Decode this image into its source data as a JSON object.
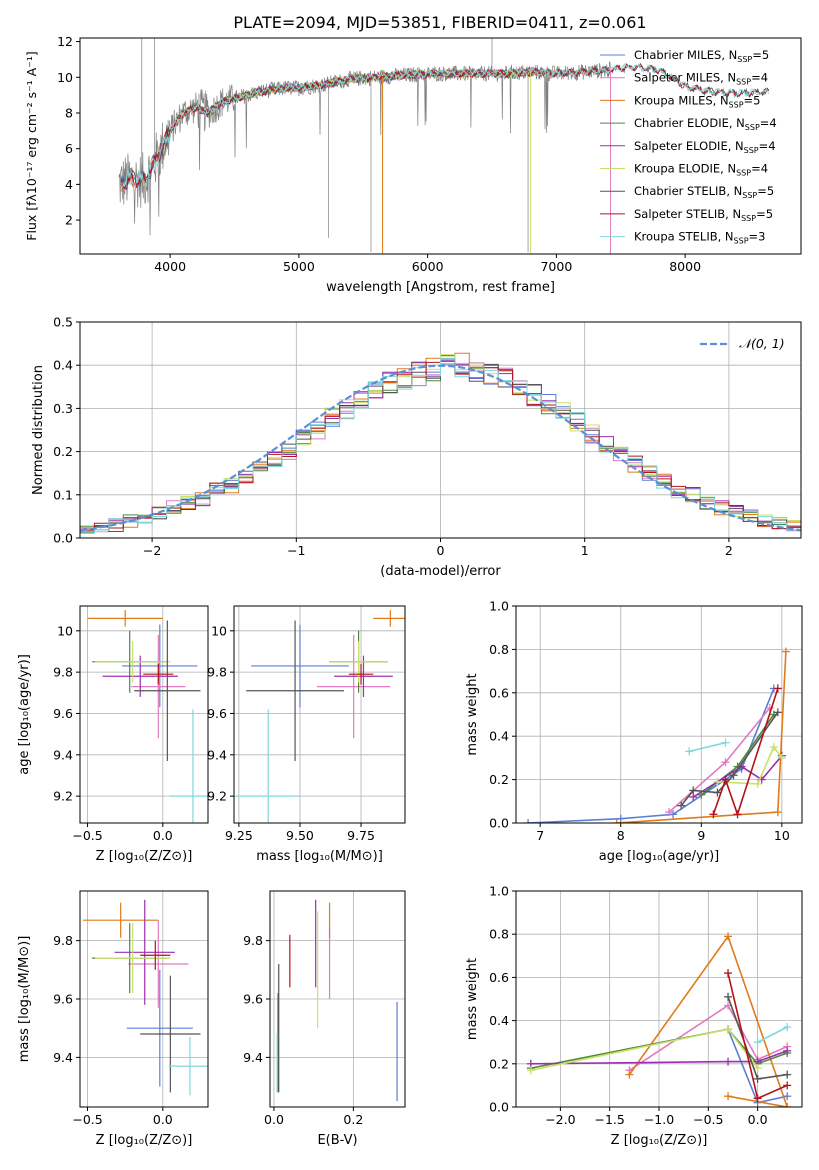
{
  "title": "PLATE=2094, MJD=53851, FIBERID=0411, z=0.061",
  "colors": {
    "chabrier_miles": "#5b7fd8",
    "salpeter_miles": "#e07bc0",
    "kroupa_miles": "#e07b1a",
    "chabrier_elodie": "#4c8a3a",
    "salpeter_elodie": "#9b2faf",
    "kroupa_elodie": "#c9e06a",
    "chabrier_stelib": "#555555",
    "salpeter_stelib": "#b5121b",
    "kroupa_stelib": "#7fd8dc",
    "data": "#7f7f7f",
    "normal": "#5b8fd8"
  },
  "chart_data": [
    {
      "id": "spectrum",
      "type": "line",
      "title": "PLATE=2094, MJD=53851, FIBERID=0411, z=0.061",
      "xlabel": "wavelength [Angstrom, rest frame]",
      "ylabel": "Flux [fλ10⁻¹⁷ erg cm⁻² s⁻¹ A⁻¹]",
      "xlim": [
        3300,
        8900
      ],
      "ylim": [
        0.1,
        12.2
      ],
      "xticks": [
        4000,
        5000,
        6000,
        7000,
        8000
      ],
      "yticks": [
        2,
        4,
        6,
        8,
        10,
        12
      ],
      "continuum": {
        "x": [
          3600,
          3700,
          3800,
          3900,
          4000,
          4100,
          4200,
          4300,
          4400,
          4500,
          4600,
          4700,
          4800,
          4900,
          5000,
          5200,
          5400,
          5600,
          5800,
          6000,
          6200,
          6400,
          6600,
          6800,
          7000,
          7200,
          7400,
          7600,
          7800,
          8000,
          8200,
          8400,
          8650
        ],
        "y": [
          4.0,
          4.3,
          4.2,
          5.5,
          7.0,
          8.0,
          8.3,
          8.0,
          8.6,
          8.8,
          9.0,
          9.2,
          9.3,
          9.4,
          9.4,
          9.6,
          9.9,
          10.0,
          10.1,
          10.2,
          10.2,
          10.2,
          10.2,
          10.3,
          10.2,
          10.3,
          10.4,
          10.6,
          10.4,
          9.5,
          9.2,
          9.1,
          9.2
        ]
      },
      "legend": [
        {
          "label": "Chabrier MILES, N",
          "nssp": "5",
          "color_key": "chabrier_miles"
        },
        {
          "label": "Salpeter MILES, N",
          "nssp": "4",
          "color_key": "salpeter_miles"
        },
        {
          "label": "Kroupa MILES, N",
          "nssp": "5",
          "color_key": "kroupa_miles"
        },
        {
          "label": "Chabrier ELODIE, N",
          "nssp": "4",
          "color_key": "chabrier_elodie"
        },
        {
          "label": "Salpeter ELODIE, N",
          "nssp": "4",
          "color_key": "salpeter_elodie"
        },
        {
          "label": "Kroupa ELODIE, N",
          "nssp": "4",
          "color_key": "kroupa_elodie"
        },
        {
          "label": "Chabrier STELIB, N",
          "nssp": "5",
          "color_key": "chabrier_stelib"
        },
        {
          "label": "Salpeter STELIB, N",
          "nssp": "5",
          "color_key": "salpeter_stelib"
        },
        {
          "label": "Kroupa STELIB, N",
          "nssp": "3",
          "color_key": "kroupa_stelib"
        }
      ],
      "nssp_sub": "SSP"
    },
    {
      "id": "residuals",
      "type": "bar",
      "xlabel": "(data-model)/error",
      "ylabel": "Normed distribution",
      "xlim": [
        -2.5,
        2.5
      ],
      "ylim": [
        0,
        0.5
      ],
      "xticks": [
        -2,
        -1,
        0,
        1,
        2
      ],
      "xtick_labels": [
        "−2",
        "−1",
        "0",
        "1",
        "2"
      ],
      "yticks": [
        0.0,
        0.1,
        0.2,
        0.3,
        0.4,
        0.5
      ],
      "ytick_labels": [
        "0.0",
        "0.1",
        "0.2",
        "0.3",
        "0.4",
        "0.5"
      ],
      "bin_start": -2.5,
      "bin_width": 0.1,
      "histogram": [
        0.02,
        0.02,
        0.03,
        0.04,
        0.05,
        0.06,
        0.07,
        0.08,
        0.09,
        0.11,
        0.12,
        0.14,
        0.16,
        0.18,
        0.2,
        0.23,
        0.25,
        0.28,
        0.3,
        0.32,
        0.34,
        0.36,
        0.37,
        0.38,
        0.39,
        0.4,
        0.4,
        0.39,
        0.38,
        0.37,
        0.35,
        0.33,
        0.31,
        0.29,
        0.27,
        0.24,
        0.22,
        0.2,
        0.17,
        0.15,
        0.13,
        0.11,
        0.1,
        0.08,
        0.07,
        0.06,
        0.05,
        0.04,
        0.035,
        0.03
      ],
      "legend_label": "𝒩(0, 1)"
    },
    {
      "id": "age_vs_Z",
      "type": "scatter",
      "xlabel": "Z [log₁₀(Z/Z⊙)]",
      "ylabel": "age  [log₁₀(age/yr)]",
      "xlim": [
        -0.55,
        0.3
      ],
      "ylim": [
        9.07,
        10.12
      ],
      "xticks": [
        -0.5,
        0.0
      ],
      "xtick_labels": [
        "−0.5",
        "0.0"
      ],
      "yticks": [
        9.2,
        9.4,
        9.6,
        9.8,
        10.0
      ],
      "points": [
        {
          "color_key": "chabrier_miles",
          "x": -0.02,
          "xerr": 0.25,
          "y": 9.83,
          "yerr": 0.2
        },
        {
          "color_key": "salpeter_miles",
          "x": -0.03,
          "xerr": 0.18,
          "y": 9.73,
          "yerr": 0.25
        },
        {
          "color_key": "kroupa_miles",
          "x": -0.25,
          "xerr": 0.25,
          "y": 10.06,
          "yerr": 0.04
        },
        {
          "color_key": "chabrier_elodie",
          "x": -0.22,
          "xerr": 0.25,
          "y": 9.85,
          "yerr": 0.15
        },
        {
          "color_key": "salpeter_elodie",
          "x": -0.15,
          "xerr": 0.25,
          "y": 9.78,
          "yerr": 0.1
        },
        {
          "color_key": "kroupa_elodie",
          "x": -0.2,
          "xerr": 0.25,
          "y": 9.85,
          "yerr": 0.1
        },
        {
          "color_key": "chabrier_stelib",
          "x": 0.03,
          "xerr": 0.22,
          "y": 9.71,
          "yerr": 0.34
        },
        {
          "color_key": "salpeter_stelib",
          "x": -0.03,
          "xerr": 0.1,
          "y": 9.79,
          "yerr": 0.05
        },
        {
          "color_key": "kroupa_stelib",
          "x": 0.2,
          "xerr": 0.15,
          "y": 9.2,
          "yerr": 0.42
        }
      ]
    },
    {
      "id": "age_vs_mass",
      "type": "scatter",
      "xlabel": "mass [log₁₀(M/M⊙)]",
      "ylabel": "",
      "xlim": [
        9.23,
        9.93
      ],
      "ylim": [
        9.07,
        10.12
      ],
      "xticks": [
        9.25,
        9.5,
        9.75
      ],
      "xtick_labels": [
        "9.25",
        "9.50",
        "9.75"
      ],
      "yticks": [
        9.2,
        9.4,
        9.6,
        9.8,
        10.0
      ],
      "points": [
        {
          "color_key": "chabrier_miles",
          "x": 9.5,
          "xerr": 0.2,
          "y": 9.83,
          "yerr": 0.2
        },
        {
          "color_key": "salpeter_miles",
          "x": 9.72,
          "xerr": 0.15,
          "y": 9.73,
          "yerr": 0.25
        },
        {
          "color_key": "kroupa_miles",
          "x": 9.87,
          "xerr": 0.07,
          "y": 10.06,
          "yerr": 0.04
        },
        {
          "color_key": "chabrier_elodie",
          "x": 9.74,
          "xerr": 0.12,
          "y": 9.85,
          "yerr": 0.15
        },
        {
          "color_key": "salpeter_elodie",
          "x": 9.76,
          "xerr": 0.12,
          "y": 9.78,
          "yerr": 0.1
        },
        {
          "color_key": "kroupa_elodie",
          "x": 9.74,
          "xerr": 0.12,
          "y": 9.85,
          "yerr": 0.1
        },
        {
          "color_key": "chabrier_stelib",
          "x": 9.48,
          "xerr": 0.2,
          "y": 9.71,
          "yerr": 0.34
        },
        {
          "color_key": "salpeter_stelib",
          "x": 9.75,
          "xerr": 0.05,
          "y": 9.79,
          "yerr": 0.05
        },
        {
          "color_key": "kroupa_stelib",
          "x": 9.37,
          "xerr": 0.13,
          "y": 9.2,
          "yerr": 0.42
        }
      ]
    },
    {
      "id": "weight_vs_age",
      "type": "line",
      "xlabel": "age  [log₁₀(age/yr)]",
      "ylabel": "mass weight",
      "xlim": [
        6.7,
        10.25
      ],
      "ylim": [
        0,
        1.0
      ],
      "xticks": [
        7,
        8,
        9,
        10
      ],
      "yticks": [
        0.0,
        0.2,
        0.4,
        0.6,
        0.8,
        1.0
      ],
      "ytick_labels": [
        "0.0",
        "0.2",
        "0.4",
        "0.6",
        "0.8",
        "1.0"
      ],
      "series": [
        {
          "color_key": "chabrier_miles",
          "x": [
            6.85,
            8.0,
            8.65,
            9.5,
            9.9
          ],
          "y": [
            0.0,
            0.02,
            0.04,
            0.25,
            0.62
          ]
        },
        {
          "color_key": "salpeter_miles",
          "x": [
            8.6,
            9.3,
            9.85
          ],
          "y": [
            0.05,
            0.28,
            0.53
          ]
        },
        {
          "color_key": "kroupa_miles",
          "x": [
            7.95,
            9.95,
            10.05
          ],
          "y": [
            0.0,
            0.05,
            0.79
          ]
        },
        {
          "color_key": "chabrier_elodie",
          "x": [
            9.0,
            9.45,
            9.9
          ],
          "y": [
            0.13,
            0.26,
            0.5
          ]
        },
        {
          "color_key": "salpeter_elodie",
          "x": [
            8.9,
            9.5,
            9.75,
            10.0
          ],
          "y": [
            0.12,
            0.26,
            0.2,
            0.31
          ]
        },
        {
          "color_key": "kroupa_elodie",
          "x": [
            9.2,
            9.7,
            9.9,
            10.0
          ],
          "y": [
            0.19,
            0.18,
            0.35,
            0.3
          ]
        },
        {
          "color_key": "chabrier_stelib",
          "x": [
            8.75,
            8.9,
            9.2,
            9.4,
            9.95
          ],
          "y": [
            0.08,
            0.15,
            0.14,
            0.22,
            0.51
          ]
        },
        {
          "color_key": "salpeter_stelib",
          "x": [
            9.15,
            9.3,
            9.45,
            9.95
          ],
          "y": [
            0.04,
            0.2,
            0.04,
            0.62
          ]
        },
        {
          "color_key": "kroupa_stelib",
          "x": [
            8.85,
            9.3
          ],
          "y": [
            0.33,
            0.37
          ]
        }
      ]
    },
    {
      "id": "mass_vs_Z",
      "type": "scatter",
      "xlabel": "Z [log₁₀(Z/Z⊙)]",
      "ylabel": "mass [log₁₀(M/M⊙)]",
      "xlim": [
        -0.55,
        0.3
      ],
      "ylim": [
        9.23,
        9.97
      ],
      "xticks": [
        -0.5,
        0.0
      ],
      "xtick_labels": [
        "−0.5",
        "0.0"
      ],
      "yticks": [
        9.4,
        9.6,
        9.8
      ],
      "points": [
        {
          "color_key": "chabrier_miles",
          "x": -0.02,
          "xerr": 0.22,
          "y": 9.5,
          "yerr": 0.2
        },
        {
          "color_key": "salpeter_miles",
          "x": -0.03,
          "xerr": 0.2,
          "y": 9.72,
          "yerr": 0.15
        },
        {
          "color_key": "kroupa_miles",
          "x": -0.28,
          "xerr": 0.25,
          "y": 9.87,
          "yerr": 0.06
        },
        {
          "color_key": "chabrier_elodie",
          "x": -0.22,
          "xerr": 0.25,
          "y": 9.74,
          "yerr": 0.12
        },
        {
          "color_key": "salpeter_elodie",
          "x": -0.12,
          "xerr": 0.2,
          "y": 9.76,
          "yerr": 0.18
        },
        {
          "color_key": "kroupa_elodie",
          "x": -0.2,
          "xerr": 0.25,
          "y": 9.74,
          "yerr": 0.12
        },
        {
          "color_key": "chabrier_stelib",
          "x": 0.05,
          "xerr": 0.2,
          "y": 9.48,
          "yerr": 0.2
        },
        {
          "color_key": "salpeter_stelib",
          "x": -0.05,
          "xerr": 0.1,
          "y": 9.75,
          "yerr": 0.05
        },
        {
          "color_key": "kroupa_stelib",
          "x": 0.18,
          "xerr": 0.14,
          "y": 9.37,
          "yerr": 0.1
        }
      ]
    },
    {
      "id": "mass_vs_EBV",
      "type": "scatter",
      "xlabel": "E(B-V)",
      "ylabel": "",
      "xlim": [
        -0.01,
        0.33
      ],
      "ylim": [
        9.23,
        9.97
      ],
      "xticks": [
        0.0,
        0.2
      ],
      "xtick_labels": [
        "0.0",
        "0.2"
      ],
      "yticks": [
        9.4,
        9.6,
        9.8
      ],
      "points": [
        {
          "color_key": "chabrier_miles",
          "x": 0.31,
          "y": 9.42,
          "yerr": 0.17
        },
        {
          "color_key": "salpeter_miles",
          "x": 0.14,
          "y": 9.72,
          "yerr": 0.12
        },
        {
          "color_key": "kroupa_miles",
          "x": 0.14,
          "y": 9.87,
          "yerr": 0.06
        },
        {
          "color_key": "chabrier_elodie",
          "x": 0.01,
          "y": 9.45,
          "yerr": 0.17
        },
        {
          "color_key": "salpeter_elodie",
          "x": 0.105,
          "y": 9.79,
          "yerr": 0.15
        },
        {
          "color_key": "kroupa_elodie",
          "x": 0.11,
          "y": 9.7,
          "yerr": 0.2
        },
        {
          "color_key": "chabrier_stelib",
          "x": 0.012,
          "y": 9.5,
          "yerr": 0.22
        },
        {
          "color_key": "salpeter_stelib",
          "x": 0.04,
          "y": 9.73,
          "yerr": 0.09
        },
        {
          "color_key": "kroupa_stelib",
          "x": 0.008,
          "y": 9.38,
          "yerr": 0.1
        }
      ]
    },
    {
      "id": "weight_vs_Z",
      "type": "line",
      "xlabel": "Z [log₁₀(Z/Z⊙)]",
      "ylabel": "mass weight",
      "xlim": [
        -2.45,
        0.45
      ],
      "ylim": [
        0,
        1.0
      ],
      "xticks": [
        -2.0,
        -1.5,
        -1.0,
        -0.5,
        0.0
      ],
      "xtick_labels": [
        "−2.0",
        "−1.5",
        "−1.0",
        "−0.5",
        "0.0"
      ],
      "yticks": [
        0.0,
        0.2,
        0.4,
        0.6,
        0.8,
        1.0
      ],
      "ytick_labels": [
        "0.0",
        "0.2",
        "0.4",
        "0.6",
        "0.8",
        "1.0"
      ],
      "series": [
        {
          "color_key": "chabrier_miles",
          "x": [
            -0.3,
            0.0,
            0.3
          ],
          "y": [
            0.36,
            0.02,
            0.05
          ]
        },
        {
          "color_key": "salpeter_miles",
          "x": [
            -1.3,
            -0.3,
            0.0,
            0.3
          ],
          "y": [
            0.17,
            0.47,
            0.22,
            0.28
          ]
        },
        {
          "color_key": "kroupa_miles",
          "x": [
            -1.3,
            -0.3,
            0.3
          ],
          "y": [
            0.15,
            0.79,
            0.0
          ]
        },
        {
          "color_key": "kroupa_miles",
          "x": [
            -0.3,
            0.3
          ],
          "y": [
            0.05,
            0.0
          ]
        },
        {
          "color_key": "chabrier_elodie",
          "x": [
            -2.3,
            -0.3,
            0.0,
            0.3
          ],
          "y": [
            0.18,
            0.36,
            0.2,
            0.25
          ]
        },
        {
          "color_key": "salpeter_elodie",
          "x": [
            -2.3,
            -0.3,
            0.0,
            0.3
          ],
          "y": [
            0.2,
            0.21,
            0.21,
            0.26
          ]
        },
        {
          "color_key": "kroupa_elodie",
          "x": [
            -2.3,
            -0.3,
            0.0
          ],
          "y": [
            0.17,
            0.36,
            0.18
          ]
        },
        {
          "color_key": "chabrier_stelib",
          "x": [
            -0.3,
            0.0,
            0.3
          ],
          "y": [
            0.51,
            0.13,
            0.15
          ]
        },
        {
          "color_key": "salpeter_stelib",
          "x": [
            -0.3,
            0.0,
            0.3
          ],
          "y": [
            0.62,
            0.04,
            0.1
          ]
        },
        {
          "color_key": "kroupa_stelib",
          "x": [
            0.0,
            0.3
          ],
          "y": [
            0.3,
            0.37
          ]
        }
      ]
    }
  ]
}
